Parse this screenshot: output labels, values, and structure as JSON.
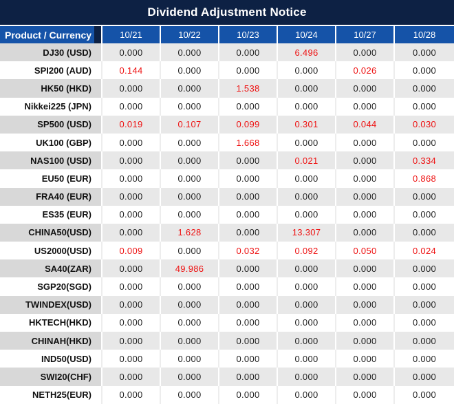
{
  "title": "Dividend Adjustment Notice",
  "colors": {
    "title_bar_bg": "#0D2144",
    "header_bg": "#1553A8",
    "header_dark_strip": "#0D2144",
    "row_gray_name_bg": "#D8D8D8",
    "row_gray_value_bg": "#E8E8E8",
    "row_white_bg": "#FFFFFF",
    "value_black": "#1F1F1F",
    "value_red": "#EE1111",
    "header_text": "#FFFFFF"
  },
  "chart_data": {
    "type": "table",
    "title": "Dividend Adjustment Notice",
    "product_header": "Product / Currency",
    "date_columns": [
      "10/21",
      "10/22",
      "10/23",
      "10/24",
      "10/27",
      "10/28"
    ],
    "rows": [
      {
        "product": "DJ30 (USD)",
        "values": [
          "0.000",
          "0.000",
          "0.000",
          "6.496",
          "0.000",
          "0.000"
        ],
        "red": [
          0,
          0,
          0,
          1,
          0,
          0
        ]
      },
      {
        "product": "SPI200 (AUD)",
        "values": [
          "0.144",
          "0.000",
          "0.000",
          "0.000",
          "0.026",
          "0.000"
        ],
        "red": [
          1,
          0,
          0,
          0,
          1,
          0
        ]
      },
      {
        "product": "HK50 (HKD)",
        "values": [
          "0.000",
          "0.000",
          "1.538",
          "0.000",
          "0.000",
          "0.000"
        ],
        "red": [
          0,
          0,
          1,
          0,
          0,
          0
        ]
      },
      {
        "product": "Nikkei225 (JPN)",
        "values": [
          "0.000",
          "0.000",
          "0.000",
          "0.000",
          "0.000",
          "0.000"
        ],
        "red": [
          0,
          0,
          0,
          0,
          0,
          0
        ]
      },
      {
        "product": "SP500 (USD)",
        "values": [
          "0.019",
          "0.107",
          "0.099",
          "0.301",
          "0.044",
          "0.030"
        ],
        "red": [
          1,
          1,
          1,
          1,
          1,
          1
        ]
      },
      {
        "product": "UK100 (GBP)",
        "values": [
          "0.000",
          "0.000",
          "1.668",
          "0.000",
          "0.000",
          "0.000"
        ],
        "red": [
          0,
          0,
          1,
          0,
          0,
          0
        ]
      },
      {
        "product": "NAS100 (USD)",
        "values": [
          "0.000",
          "0.000",
          "0.000",
          "0.021",
          "0.000",
          "0.334"
        ],
        "red": [
          0,
          0,
          0,
          1,
          0,
          1
        ]
      },
      {
        "product": "EU50 (EUR)",
        "values": [
          "0.000",
          "0.000",
          "0.000",
          "0.000",
          "0.000",
          "0.868"
        ],
        "red": [
          0,
          0,
          0,
          0,
          0,
          1
        ]
      },
      {
        "product": "FRA40 (EUR)",
        "values": [
          "0.000",
          "0.000",
          "0.000",
          "0.000",
          "0.000",
          "0.000"
        ],
        "red": [
          0,
          0,
          0,
          0,
          0,
          0
        ]
      },
      {
        "product": "ES35 (EUR)",
        "values": [
          "0.000",
          "0.000",
          "0.000",
          "0.000",
          "0.000",
          "0.000"
        ],
        "red": [
          0,
          0,
          0,
          0,
          0,
          0
        ]
      },
      {
        "product": "CHINA50(USD)",
        "values": [
          "0.000",
          "1.628",
          "0.000",
          "13.307",
          "0.000",
          "0.000"
        ],
        "red": [
          0,
          1,
          0,
          1,
          0,
          0
        ]
      },
      {
        "product": "US2000(USD)",
        "values": [
          "0.009",
          "0.000",
          "0.032",
          "0.092",
          "0.050",
          "0.024"
        ],
        "red": [
          1,
          0,
          1,
          1,
          1,
          1
        ]
      },
      {
        "product": "SA40(ZAR)",
        "values": [
          "0.000",
          "49.986",
          "0.000",
          "0.000",
          "0.000",
          "0.000"
        ],
        "red": [
          0,
          1,
          0,
          0,
          0,
          0
        ]
      },
      {
        "product": "SGP20(SGD)",
        "values": [
          "0.000",
          "0.000",
          "0.000",
          "0.000",
          "0.000",
          "0.000"
        ],
        "red": [
          0,
          0,
          0,
          0,
          0,
          0
        ]
      },
      {
        "product": "TWINDEX(USD)",
        "values": [
          "0.000",
          "0.000",
          "0.000",
          "0.000",
          "0.000",
          "0.000"
        ],
        "red": [
          0,
          0,
          0,
          0,
          0,
          0
        ]
      },
      {
        "product": "HKTECH(HKD)",
        "values": [
          "0.000",
          "0.000",
          "0.000",
          "0.000",
          "0.000",
          "0.000"
        ],
        "red": [
          0,
          0,
          0,
          0,
          0,
          0
        ]
      },
      {
        "product": "CHINAH(HKD)",
        "values": [
          "0.000",
          "0.000",
          "0.000",
          "0.000",
          "0.000",
          "0.000"
        ],
        "red": [
          0,
          0,
          0,
          0,
          0,
          0
        ]
      },
      {
        "product": "IND50(USD)",
        "values": [
          "0.000",
          "0.000",
          "0.000",
          "0.000",
          "0.000",
          "0.000"
        ],
        "red": [
          0,
          0,
          0,
          0,
          0,
          0
        ]
      },
      {
        "product": "SWI20(CHF)",
        "values": [
          "0.000",
          "0.000",
          "0.000",
          "0.000",
          "0.000",
          "0.000"
        ],
        "red": [
          0,
          0,
          0,
          0,
          0,
          0
        ]
      },
      {
        "product": "NETH25(EUR)",
        "values": [
          "0.000",
          "0.000",
          "0.000",
          "0.000",
          "0.000",
          "0.000"
        ],
        "red": [
          0,
          0,
          0,
          0,
          0,
          0
        ]
      }
    ],
    "layout": {
      "striped": "alternating gray/white starting gray",
      "first_col_align": "right",
      "value_align": "center"
    }
  }
}
